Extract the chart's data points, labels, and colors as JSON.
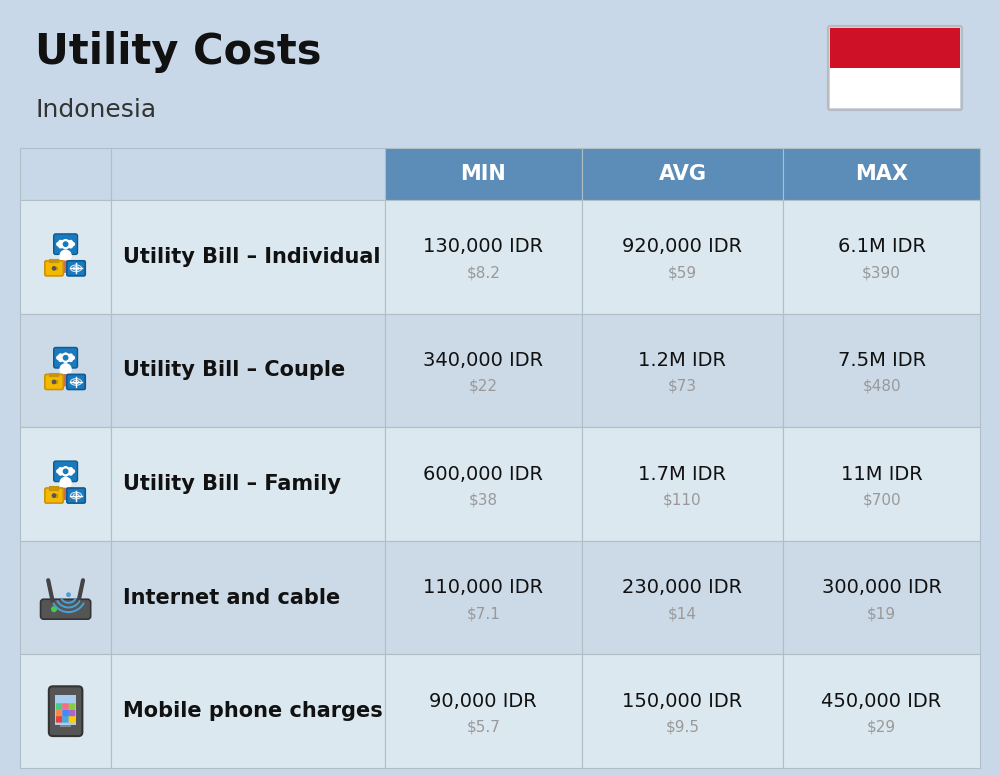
{
  "title": "Utility Costs",
  "subtitle": "Indonesia",
  "background_color": "#c8d8e8",
  "header_bg_color": "#5b8db8",
  "header_text_color": "#ffffff",
  "row_bg_color_1": "#dce8f0",
  "row_bg_color_2": "#ccdae8",
  "col_headers": [
    "MIN",
    "AVG",
    "MAX"
  ],
  "rows": [
    {
      "label": "Utility Bill – Individual",
      "min_idr": "130,000 IDR",
      "min_usd": "$8.2",
      "avg_idr": "920,000 IDR",
      "avg_usd": "$59",
      "max_idr": "6.1M IDR",
      "max_usd": "$390",
      "icon": "utility"
    },
    {
      "label": "Utility Bill – Couple",
      "min_idr": "340,000 IDR",
      "min_usd": "$22",
      "avg_idr": "1.2M IDR",
      "avg_usd": "$73",
      "max_idr": "7.5M IDR",
      "max_usd": "$480",
      "icon": "utility"
    },
    {
      "label": "Utility Bill – Family",
      "min_idr": "600,000 IDR",
      "min_usd": "$38",
      "avg_idr": "1.7M IDR",
      "avg_usd": "$110",
      "max_idr": "11M IDR",
      "max_usd": "$700",
      "icon": "utility"
    },
    {
      "label": "Internet and cable",
      "min_idr": "110,000 IDR",
      "min_usd": "$7.1",
      "avg_idr": "230,000 IDR",
      "avg_usd": "$14",
      "max_idr": "300,000 IDR",
      "max_usd": "$19",
      "icon": "internet"
    },
    {
      "label": "Mobile phone charges",
      "min_idr": "90,000 IDR",
      "min_usd": "$5.7",
      "avg_idr": "150,000 IDR",
      "avg_usd": "$9.5",
      "max_idr": "450,000 IDR",
      "max_usd": "$29",
      "icon": "mobile"
    }
  ],
  "flag_red": "#ce1126",
  "flag_white": "#ffffff",
  "idr_fontsize": 14,
  "usd_fontsize": 11,
  "label_fontsize": 15,
  "header_fontsize": 15,
  "title_color": "#111111",
  "label_color": "#111111",
  "idr_color": "#111111",
  "usd_color": "#999999"
}
